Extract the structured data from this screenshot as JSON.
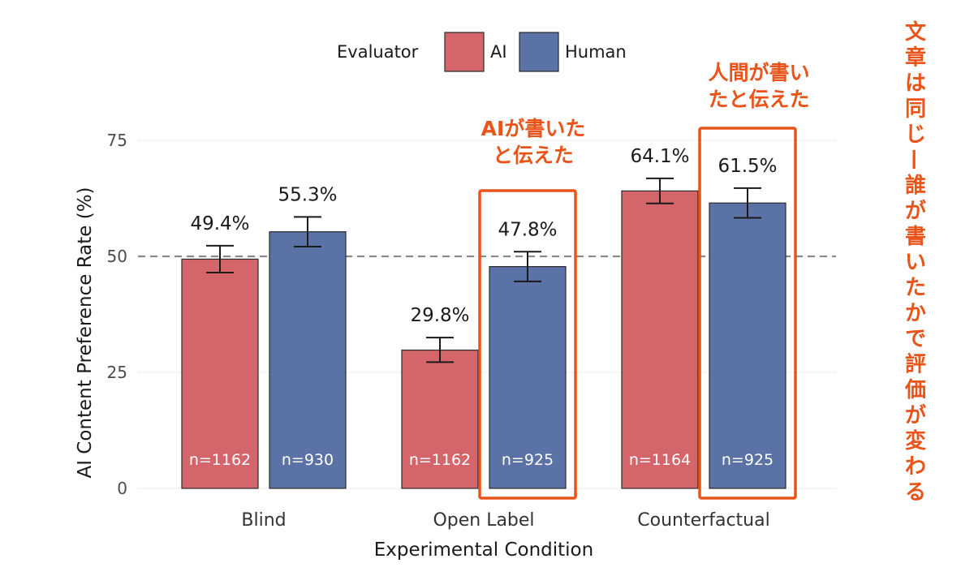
{
  "chart_data": {
    "type": "bar",
    "xlabel": "Experimental Condition",
    "ylabel": "AI Content Preference Rate (%)",
    "ylim": [
      0,
      80
    ],
    "yticks": [
      0,
      25,
      50,
      75
    ],
    "reference_line": 50,
    "categories": [
      "Blind",
      "Open Label",
      "Counterfactual"
    ],
    "legend": {
      "title": "Evaluator",
      "position": "top"
    },
    "series": [
      {
        "name": "AI",
        "color": "#d4666b",
        "values": [
          49.4,
          29.8,
          64.1
        ],
        "labels": [
          "49.4%",
          "29.8%",
          "64.1%"
        ],
        "error_low": [
          46.5,
          27.2,
          61.4
        ],
        "error_high": [
          52.3,
          32.5,
          66.8
        ],
        "n_labels": [
          "n=1162",
          "n=1162",
          "n=1164"
        ]
      },
      {
        "name": "Human",
        "color": "#5a72a6",
        "values": [
          55.3,
          47.8,
          61.5
        ],
        "labels": [
          "55.3%",
          "47.8%",
          "61.5%"
        ],
        "error_low": [
          52.1,
          44.6,
          58.3
        ],
        "error_high": [
          58.5,
          51.0,
          64.7
        ],
        "n_labels": [
          "n=930",
          "n=925",
          "n=925"
        ]
      }
    ],
    "annotations": [
      {
        "category": "Open Label",
        "series": "Human",
        "lines": [
          "AIが書いた",
          "と伝えた"
        ]
      },
      {
        "category": "Counterfactual",
        "series": "Human",
        "lines": [
          "人間が書い",
          "たと伝えた"
        ]
      }
    ],
    "side_note": "文章は同じ—誰が書いたかで評価が変わる",
    "annotation_color": "#e8541a"
  }
}
